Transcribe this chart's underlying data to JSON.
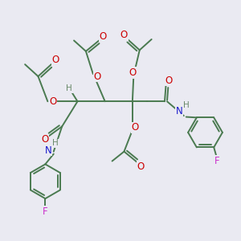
{
  "bg_color": "#eaeaf2",
  "bond_color": "#4a7a50",
  "bond_width": 1.4,
  "atom_colors": {
    "O": "#cc0000",
    "N": "#1a1acc",
    "F": "#cc33cc",
    "H": "#6a8a6a",
    "C": "#4a7a50"
  },
  "font_size_atom": 8.5,
  "font_size_h": 7.5
}
